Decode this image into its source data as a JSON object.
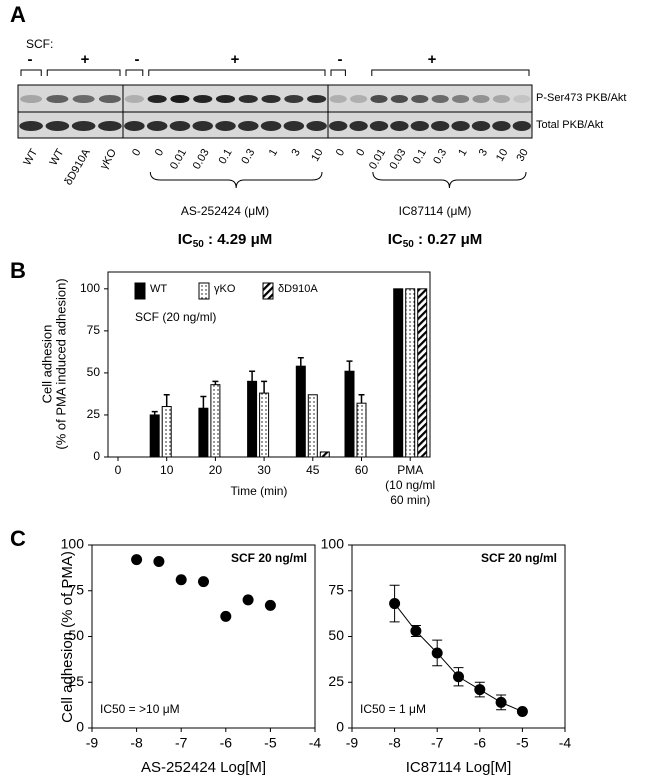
{
  "panel_a": {
    "letter": "A",
    "scf_label": "SCF:",
    "signs": [
      "-",
      "+",
      "-",
      "+",
      "-",
      "+"
    ],
    "row_labels": [
      "P-Ser473 PKB/Akt",
      "Total PKB/Akt"
    ],
    "lanes": [
      [
        "WT",
        "WT",
        "δD910A",
        "γKO"
      ],
      [
        "0",
        "0",
        "0.01",
        "0.03",
        "0.1",
        "0.3",
        "1",
        "3",
        "10"
      ],
      [
        "0",
        "0",
        "0.01",
        "0.03",
        "0.1",
        "0.3",
        "1",
        "3",
        "10",
        "30"
      ]
    ],
    "groups": [
      "AS-252424 (μM)",
      "IC87114 (μM)"
    ],
    "ic50": [
      {
        "label": "IC",
        "sub": "50",
        "value": " : 4.29 μM"
      },
      {
        "label": "IC",
        "sub": "50",
        "value": " : 0.27 μM"
      }
    ]
  },
  "chart_data": [
    {
      "type": "bar",
      "letter": "B",
      "y_label": [
        "Cell adhesion",
        "(% of PMA induced adhesion)"
      ],
      "x_label": "Time (min)",
      "annotation": "SCF (20 ng/ml)",
      "categories": [
        "0",
        "10",
        "20",
        "30",
        "45",
        "60",
        "PMA\n(10 ng/ml\n60 min)"
      ],
      "series": [
        {
          "name": "WT",
          "color": "#000000",
          "pattern": "solid",
          "values": [
            0,
            25,
            29,
            45,
            54,
            51,
            100
          ],
          "errors": [
            0,
            2,
            7,
            6,
            5,
            6,
            0
          ]
        },
        {
          "name": "γKO",
          "color": "#000000",
          "pattern": "dots",
          "values": [
            0,
            30,
            43,
            38,
            37,
            32,
            100
          ],
          "errors": [
            0,
            7,
            2,
            7,
            0,
            5,
            0
          ]
        },
        {
          "name": "δD910A",
          "color": "#000000",
          "pattern": "hatch",
          "values": [
            null,
            null,
            null,
            null,
            3,
            null,
            100
          ],
          "errors": [
            null,
            null,
            null,
            null,
            0,
            null,
            0
          ]
        }
      ],
      "ylim": [
        0,
        110
      ],
      "yticks": [
        0,
        25,
        50,
        75,
        100
      ]
    },
    {
      "type": "scatter",
      "letter": "C",
      "y_label": "Cell adhesion (% of PMA)",
      "x_label": "AS-252424 Log[M]",
      "annotation": "SCF 20 ng/ml",
      "note": "IC50 = >10 μM",
      "x": [
        -8,
        -7.5,
        -7,
        -6.5,
        -6,
        -5.5,
        -5
      ],
      "values": [
        92,
        91,
        81,
        80,
        61,
        70,
        67
      ],
      "color": "#000000",
      "line": false,
      "xlim": [
        -9,
        -4
      ],
      "xticks": [
        -9,
        -8,
        -7,
        -6,
        -5,
        -4
      ],
      "ylim": [
        0,
        100
      ],
      "yticks": [
        0,
        25,
        50,
        75,
        100
      ]
    },
    {
      "type": "scatter",
      "x_label": "IC87114 Log[M]",
      "annotation": "SCF 20 ng/ml",
      "note": "IC50 = 1 μM",
      "x": [
        -8,
        -7.5,
        -7,
        -6.5,
        -6,
        -5.5,
        -5
      ],
      "values": [
        68,
        53,
        41,
        28,
        21,
        14,
        9
      ],
      "errors": [
        10,
        3,
        7,
        5,
        4,
        4,
        1
      ],
      "color": "#000000",
      "line": true,
      "xlim": [
        -9,
        -4
      ],
      "xticks": [
        -9,
        -8,
        -7,
        -6,
        -5,
        -4
      ],
      "ylim": [
        0,
        100
      ],
      "yticks": [
        0,
        25,
        50,
        75,
        100
      ]
    }
  ]
}
